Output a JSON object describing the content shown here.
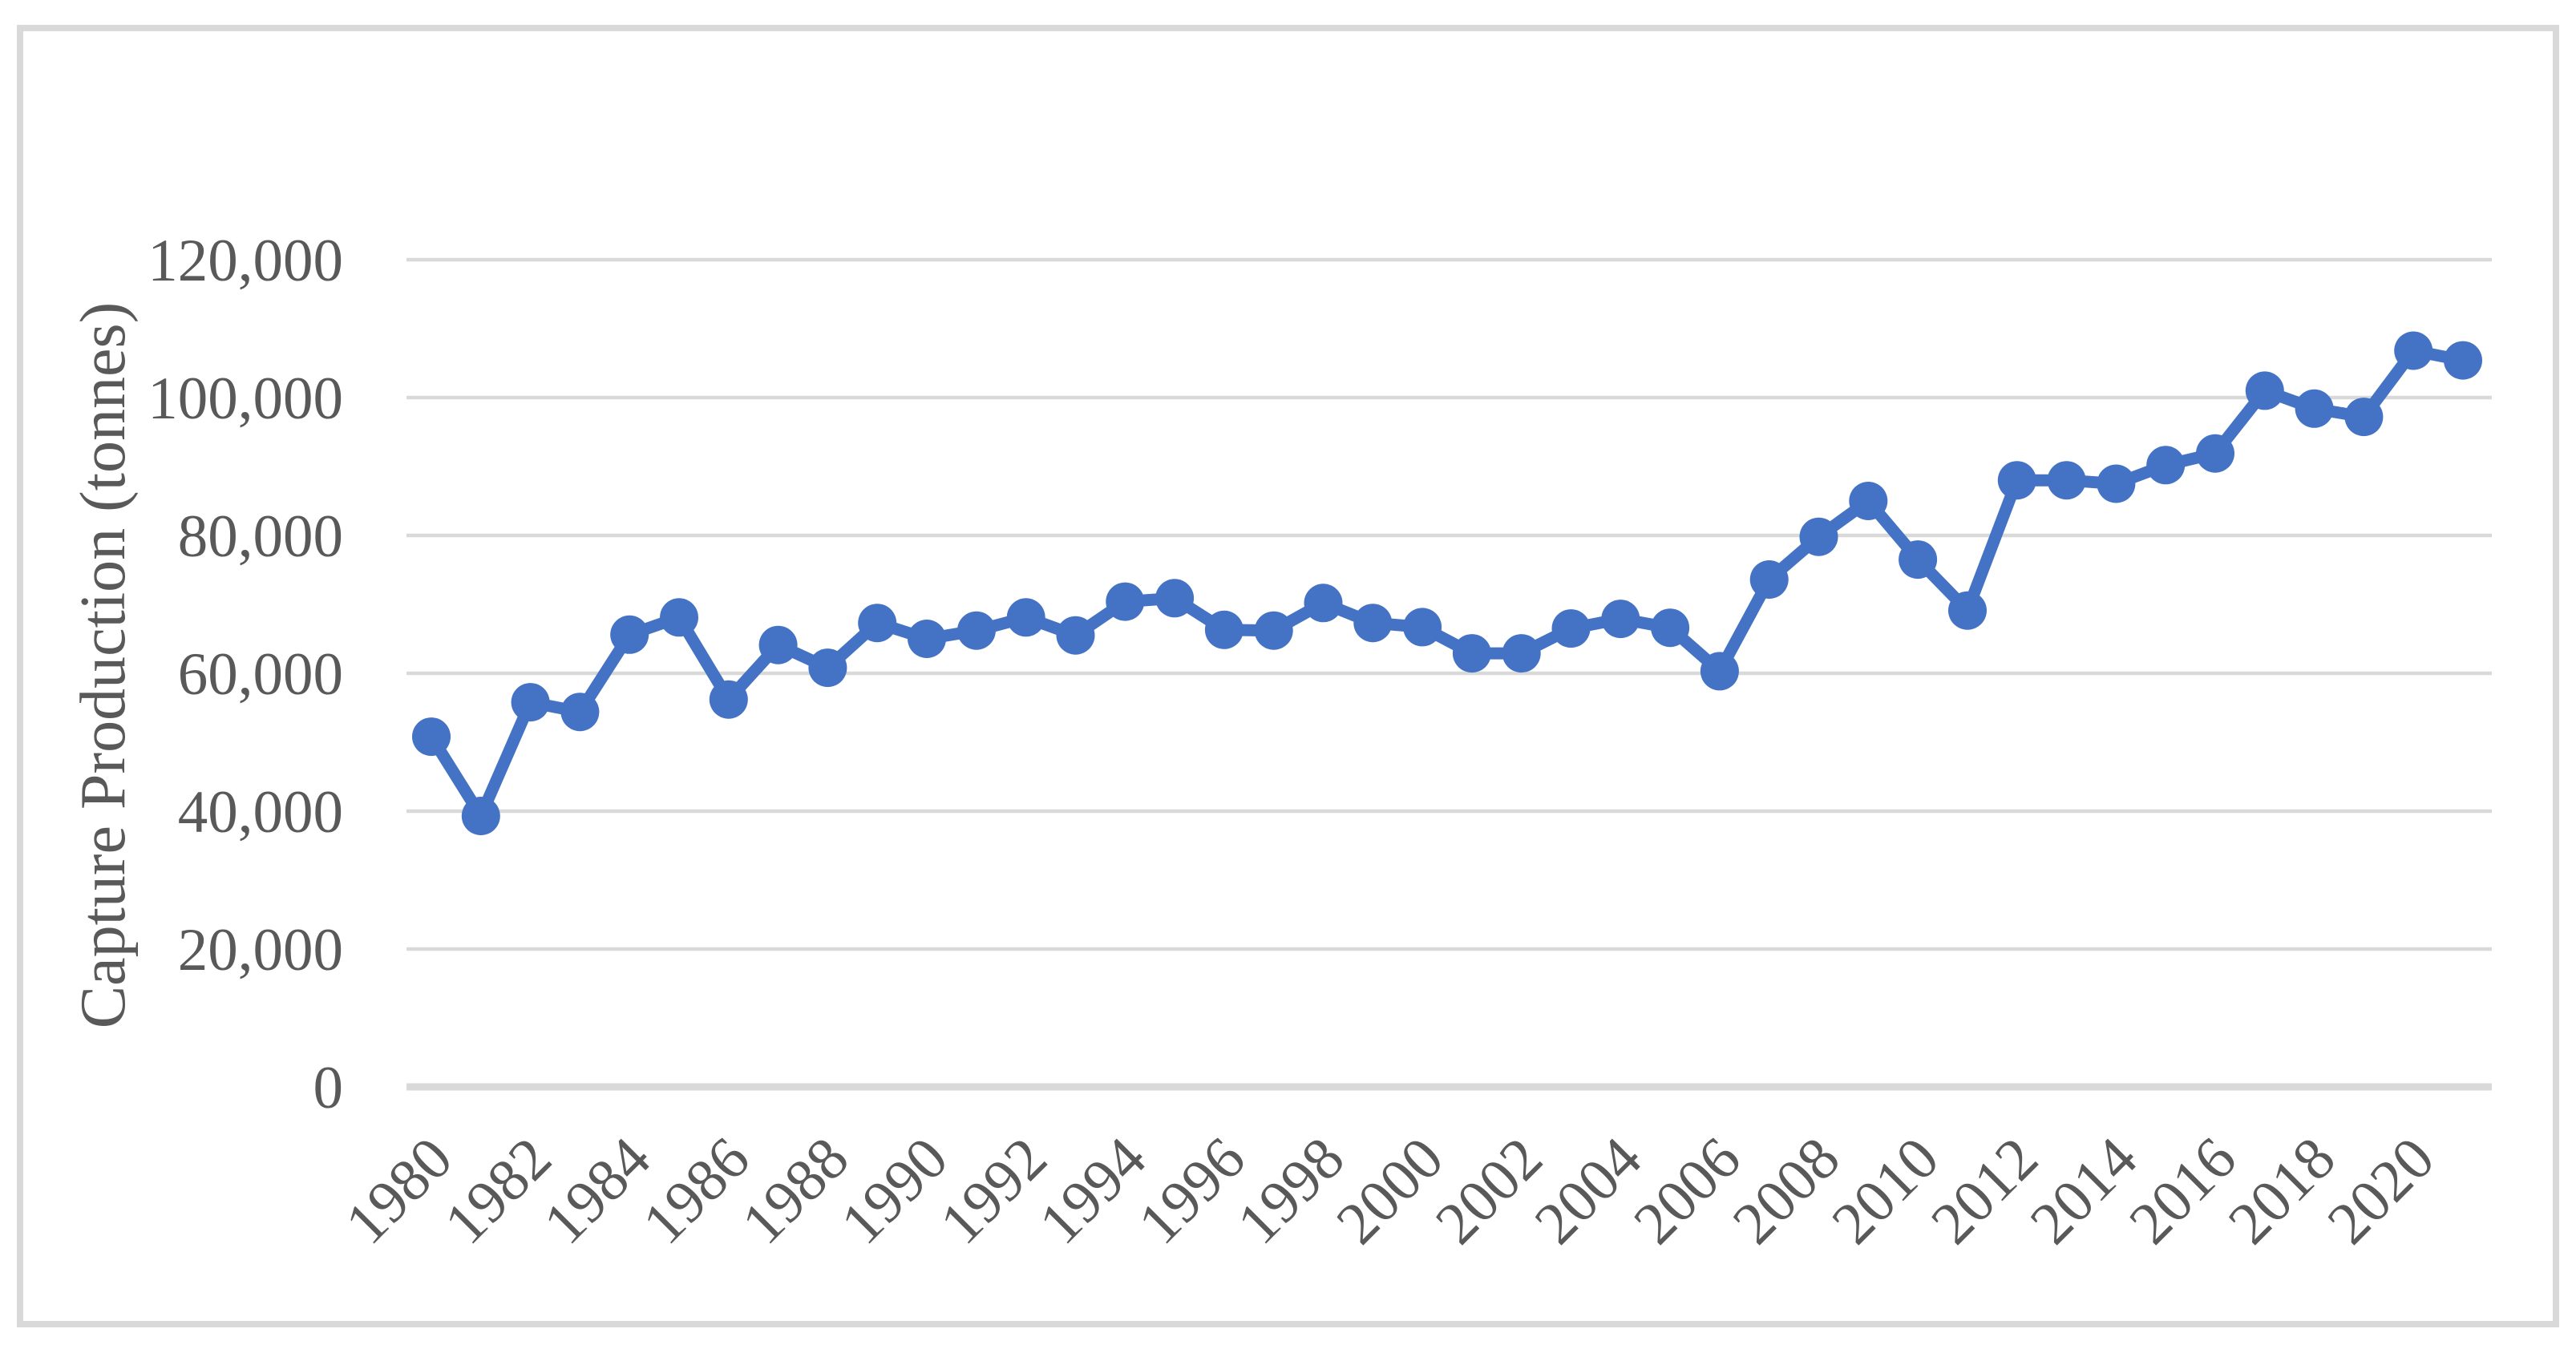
{
  "chart_data": {
    "type": "line",
    "title": "",
    "ylabel": "Capture Production (tonnes)",
    "xlabel": "",
    "legend": "none",
    "grid": "horizontal",
    "marker": "circle",
    "x": [
      1980,
      1981,
      1982,
      1983,
      1984,
      1985,
      1986,
      1987,
      1988,
      1989,
      1990,
      1991,
      1992,
      1993,
      1994,
      1995,
      1996,
      1997,
      1998,
      1999,
      2000,
      2001,
      2002,
      2003,
      2004,
      2005,
      2006,
      2007,
      2008,
      2009,
      2010,
      2011,
      2012,
      2013,
      2014,
      2015,
      2016,
      2017,
      2018,
      2019,
      2020,
      2021
    ],
    "series": [
      {
        "name": "Capture Production",
        "color": "#4472c4",
        "values": [
          50800,
          39300,
          55800,
          54400,
          65600,
          68100,
          56200,
          64100,
          60800,
          67300,
          65000,
          66200,
          68100,
          65500,
          70400,
          70900,
          66300,
          66200,
          70200,
          67300,
          66700,
          62900,
          62900,
          66500,
          67900,
          66600,
          60300,
          73600,
          79800,
          85000,
          76500,
          69100,
          88000,
          88000,
          87500,
          90200,
          91900,
          101000,
          98400,
          97200,
          106800,
          105400
        ]
      }
    ],
    "xlim": [
      1980,
      2021
    ],
    "ylim": [
      0,
      120000
    ],
    "xticks": [
      1980,
      1982,
      1984,
      1986,
      1988,
      1990,
      1992,
      1994,
      1996,
      1998,
      2000,
      2002,
      2004,
      2006,
      2008,
      2010,
      2012,
      2014,
      2016,
      2018,
      2020
    ],
    "yticks": [
      0,
      20000,
      40000,
      60000,
      80000,
      100000,
      120000
    ],
    "ytick_labels": [
      "0",
      "20,000",
      "40,000",
      "60,000",
      "80,000",
      "100,000",
      "120,000"
    ],
    "colors": {
      "series": "#4472c4",
      "gridline": "#d9d9d9",
      "axis_line": "#d9d9d9",
      "text": "#595959",
      "frame_border": "#d9d9d9",
      "background": "#ffffff"
    }
  }
}
